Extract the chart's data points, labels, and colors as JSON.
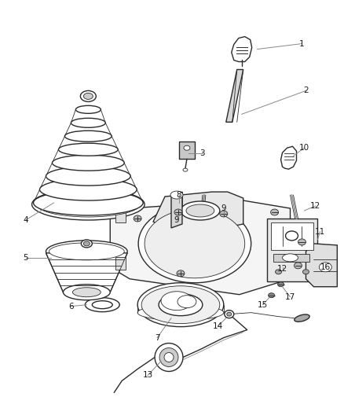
{
  "background_color": "#ffffff",
  "fig_width": 4.38,
  "fig_height": 5.33,
  "dpi": 100,
  "line_color": "#2a2a2a",
  "text_color": "#1a1a1a",
  "label_fontsize": 7.5,
  "leader_color": "#888888",
  "leader_lw": 0.7
}
